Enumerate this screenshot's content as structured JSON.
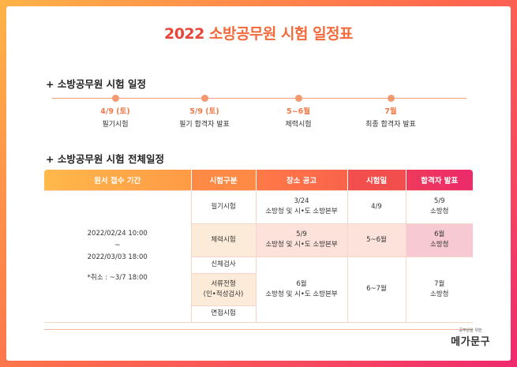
{
  "title_prefix": "2022",
  "title_main": "소방공무원 시험 일정표",
  "section1": "+ 소방공무원 시험 일정",
  "timeline": [
    {
      "date": "4/9 (토)",
      "label": "필기시험"
    },
    {
      "date": "5/9 (토)",
      "label": "필기 합격자 발표"
    },
    {
      "date": "5~6월",
      "label": "체력시험"
    },
    {
      "date": "7월",
      "label": "최종 합격자 발표"
    }
  ],
  "section2": "+ 소방공무원 시험 전체일정",
  "table": {
    "headers": [
      "원서 접수 기간",
      "시험구분",
      "장소 공고",
      "시험일",
      "합격자 발표"
    ],
    "application": {
      "start": "2022/02/24 10:00",
      "tilde": "~",
      "end": "2022/03/03 18:00",
      "cancel": "*취소 : ~3/7 18:00"
    },
    "rows": {
      "written": {
        "type": "필기시험",
        "notice_date": "3/24",
        "notice_org": "소방청 및 시•도 소방본부",
        "exam": "4/9",
        "result_date": "5/9",
        "result_org": "소방청"
      },
      "physical": {
        "type": "체력시험",
        "notice_date": "5/9",
        "notice_org": "소방청 및 시•도 소방본부",
        "exam": "5~6월",
        "result_date": "6월",
        "result_org": "소방청"
      },
      "body": {
        "type": "신체검사"
      },
      "document": {
        "type_line1": "서류전형",
        "type_line2": "(인•적성검사)"
      },
      "interview": {
        "type": "면접시험"
      },
      "final": {
        "notice_date": "6월",
        "notice_org": "소방청 및 시•도 소방본부",
        "exam": "6~7월",
        "result_date": "7월",
        "result_org": "소방청"
      }
    }
  },
  "logo": {
    "small": "공무원을 위한",
    "main": "메가문구"
  }
}
